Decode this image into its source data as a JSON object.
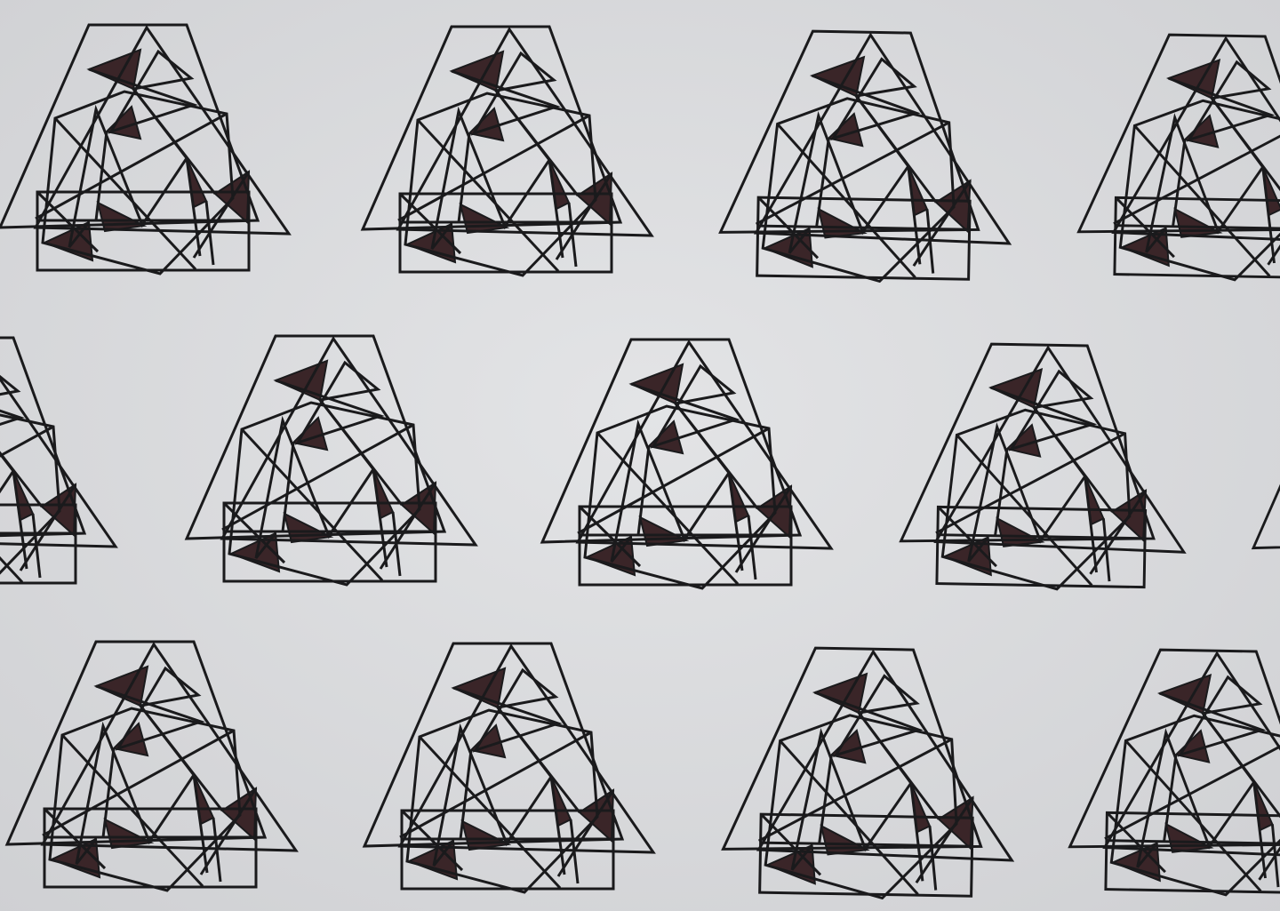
{
  "paper_color": "#dcdddf",
  "paper_shadow_color": "#c9cacd",
  "line_color": "#1a1a1c",
  "fill_color": "#3a2528",
  "motif_grid": {
    "rows": 3,
    "visible_motifs": 14
  }
}
